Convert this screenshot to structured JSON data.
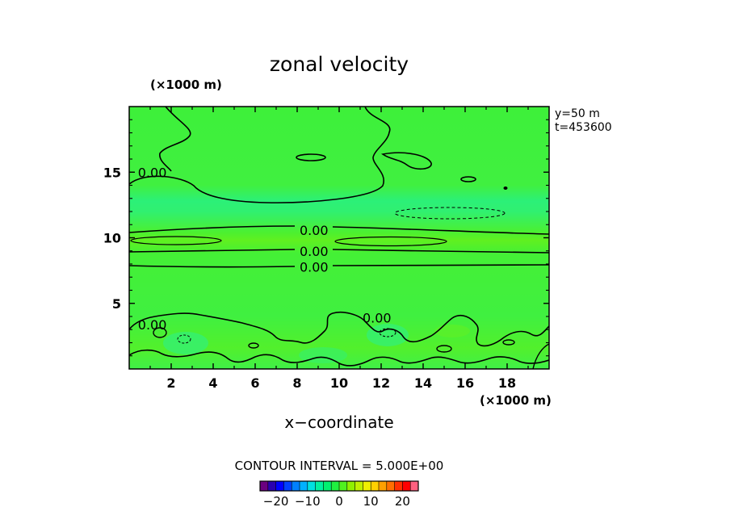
{
  "chart_data": {
    "type": "heatmap",
    "title": "zonal velocity",
    "xlabel": "x−coordinate",
    "x_unit": "(×1000 m)",
    "y_unit": "(×1000 m)",
    "xlim": [
      0,
      20
    ],
    "ylim": [
      0,
      20
    ],
    "x_ticks": [
      2,
      4,
      6,
      8,
      10,
      12,
      14,
      16,
      18
    ],
    "y_ticks": [
      5,
      10,
      15
    ],
    "info_lines": [
      "y=50  m",
      "t=453600"
    ],
    "contour_interval": "CONTOUR INTERVAL = 5.000E+00",
    "contour_labels": [
      {
        "text": "0.00",
        "x": 1.1,
        "y": 15.0
      },
      {
        "text": "0.00",
        "x": 8.8,
        "y": 10.6
      },
      {
        "text": "0.00",
        "x": 8.8,
        "y": 9.0
      },
      {
        "text": "0.00",
        "x": 8.8,
        "y": 7.8
      },
      {
        "text": "0.00",
        "x": 1.1,
        "y": 3.4
      },
      {
        "text": "0.00",
        "x": 11.8,
        "y": 3.9
      }
    ],
    "colorbar": {
      "min": -25,
      "max": 25,
      "ticks": [
        "−20",
        "−10",
        "0",
        "10",
        "20"
      ],
      "colors": [
        "#6b0080",
        "#2a00b0",
        "#0000ff",
        "#0040ff",
        "#0080ff",
        "#00b0ff",
        "#00e0e0",
        "#00f0a0",
        "#00f070",
        "#20f040",
        "#50f020",
        "#90f000",
        "#c0f000",
        "#f0f000",
        "#ffd000",
        "#ffa000",
        "#ff7000",
        "#ff3000",
        "#ff0000",
        "#ff6080"
      ]
    },
    "field_description_bands": [
      {
        "y": 12.0,
        "level": "slightly negative"
      },
      {
        "y": 9.8,
        "level": "slightly positive"
      },
      {
        "y": 2.0,
        "level": "mixed"
      }
    ],
    "grid": false
  }
}
